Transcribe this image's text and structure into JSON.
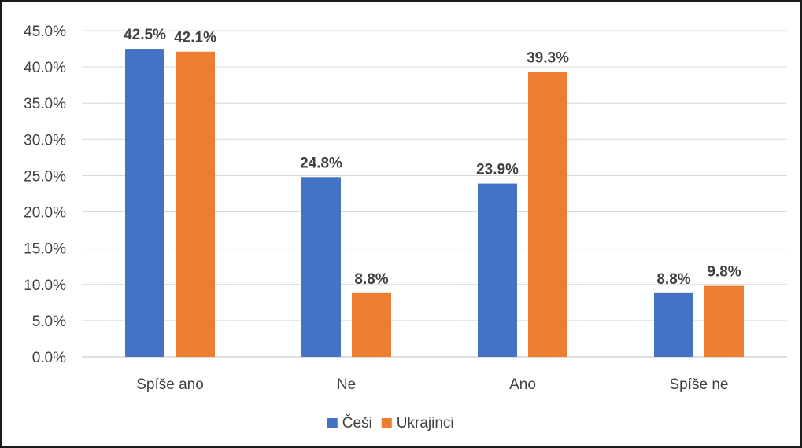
{
  "chart_data": {
    "type": "bar",
    "categories": [
      "Spíše ano",
      "Ne",
      "Ano",
      "Spíše ne"
    ],
    "series": [
      {
        "name": "Češi",
        "color": "#4472C4",
        "values": [
          42.5,
          24.8,
          23.9,
          8.8
        ],
        "labels": [
          "42.5%",
          "24.8%",
          "23.9%",
          "8.8%"
        ]
      },
      {
        "name": "Ukrajinci",
        "color": "#ED7D31",
        "values": [
          42.1,
          8.8,
          39.3,
          9.8
        ],
        "labels": [
          "42.1%",
          "8.8%",
          "39.3%",
          "9.8%"
        ]
      }
    ],
    "ylim": [
      0,
      45
    ],
    "yticks": [
      "0.0%",
      "5.0%",
      "10.0%",
      "15.0%",
      "20.0%",
      "25.0%",
      "30.0%",
      "35.0%",
      "40.0%",
      "45.0%"
    ],
    "grid": true,
    "legend_position": "bottom"
  }
}
